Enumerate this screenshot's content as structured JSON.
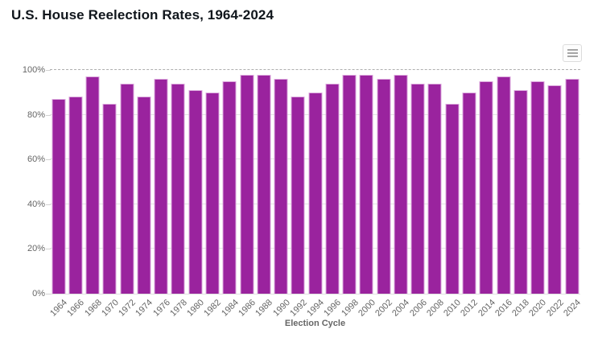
{
  "title": "U.S. House Reelection Rates, 1964-2024",
  "context_menu": {
    "icon": "hamburger-menu-icon"
  },
  "chart_data": {
    "type": "bar",
    "title": "U.S. House Reelection Rates, 1964-2024",
    "xlabel": "Election Cycle",
    "ylabel": "",
    "ylim": [
      0,
      100
    ],
    "y_ticks": [
      "0%",
      "20%",
      "40%",
      "60%",
      "80%",
      "100%"
    ],
    "y_tick_values": [
      0,
      20,
      40,
      60,
      80,
      100
    ],
    "grid": "horizontal, top line dashed",
    "legend": "none",
    "categories": [
      "1964",
      "1966",
      "1968",
      "1970",
      "1972",
      "1974",
      "1976",
      "1978",
      "1980",
      "1982",
      "1984",
      "1986",
      "1988",
      "1990",
      "1992",
      "1994",
      "1996",
      "1998",
      "2000",
      "2002",
      "2004",
      "2006",
      "2008",
      "2010",
      "2012",
      "2014",
      "2016",
      "2018",
      "2020",
      "2022",
      "2024"
    ],
    "values": [
      87,
      88,
      97,
      85,
      94,
      88,
      96,
      94,
      91,
      90,
      95,
      98,
      98,
      96,
      88,
      90,
      94,
      98,
      98,
      96,
      98,
      94,
      94,
      85,
      90,
      95,
      97,
      91,
      95,
      93,
      96
    ],
    "colors": {
      "bar_fill": "#9a239e",
      "bar_border": "#dcaadd",
      "gridline": "#e4e4e4",
      "top_gridline": "#aeaeae",
      "axis_label": "#666666",
      "title_text": "#10161c"
    }
  }
}
